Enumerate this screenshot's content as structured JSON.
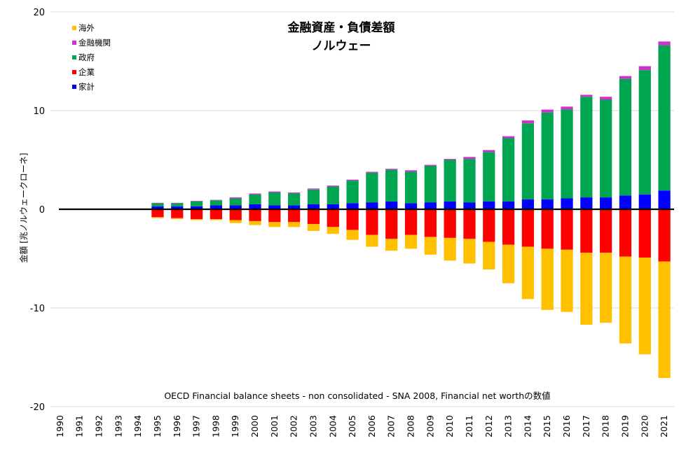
{
  "chart_data": {
    "type": "bar",
    "stacked": true,
    "title": "金融資産・負債差額",
    "subtitle": "ノルウェー",
    "ylabel": "金額 [兆ノルウェークローネ]",
    "xlabel": "",
    "note": "OECD Financial balance sheets - non consolidated - SNA 2008, Financial net worthの数値",
    "ylim": [
      -20,
      20
    ],
    "yticks": [
      "-20",
      "-10",
      "0",
      "10",
      "20"
    ],
    "ytick_values": [
      -20,
      -10,
      0,
      10,
      20
    ],
    "grid": true,
    "legend_position": "top-left",
    "categories": [
      "1990",
      "1991",
      "1992",
      "1993",
      "1994",
      "1995",
      "1996",
      "1997",
      "1998",
      "1999",
      "2000",
      "2001",
      "2002",
      "2003",
      "2004",
      "2005",
      "2006",
      "2007",
      "2008",
      "2009",
      "2010",
      "2011",
      "2012",
      "2013",
      "2014",
      "2015",
      "2016",
      "2017",
      "2018",
      "2019",
      "2020",
      "2021"
    ],
    "series": [
      {
        "name": "海外",
        "color": "#FFC000",
        "values": [
          null,
          null,
          null,
          null,
          null,
          -0.1,
          -0.1,
          -0.1,
          -0.1,
          -0.3,
          -0.4,
          -0.5,
          -0.5,
          -0.7,
          -0.7,
          -1.0,
          -1.2,
          -1.2,
          -1.4,
          -1.8,
          -2.3,
          -2.5,
          -2.8,
          -3.9,
          -5.3,
          -6.2,
          -6.3,
          -7.3,
          -7.1,
          -8.8,
          -9.8,
          -11.8
        ]
      },
      {
        "name": "金融機関",
        "color": "#CC33CC",
        "values": [
          null,
          null,
          null,
          null,
          null,
          0.05,
          0.05,
          0.05,
          0.05,
          0.1,
          0.1,
          0.1,
          0.1,
          0.1,
          0.1,
          0.1,
          0.1,
          0.1,
          0.15,
          0.1,
          0.1,
          0.2,
          0.2,
          0.2,
          0.3,
          0.3,
          0.3,
          0.2,
          0.3,
          0.3,
          0.4,
          0.4
        ]
      },
      {
        "name": "政府",
        "color": "#00A550",
        "values": [
          null,
          null,
          null,
          null,
          null,
          0.3,
          0.3,
          0.5,
          0.5,
          0.7,
          1.0,
          1.3,
          1.2,
          1.5,
          1.8,
          2.3,
          3.0,
          3.2,
          3.2,
          3.7,
          4.2,
          4.4,
          5.0,
          6.4,
          7.7,
          8.8,
          9.0,
          10.2,
          9.9,
          11.8,
          12.6,
          14.7
        ]
      },
      {
        "name": "企業",
        "color": "#FF0000",
        "values": [
          null,
          null,
          null,
          null,
          null,
          -0.8,
          -0.9,
          -1.0,
          -1.0,
          -1.1,
          -1.2,
          -1.3,
          -1.3,
          -1.5,
          -1.8,
          -2.1,
          -2.6,
          -3.0,
          -2.6,
          -2.8,
          -2.9,
          -3.0,
          -3.3,
          -3.6,
          -3.8,
          -4.0,
          -4.1,
          -4.4,
          -4.4,
          -4.8,
          -4.9,
          -5.3
        ]
      },
      {
        "name": "家計",
        "color": "#0000FF",
        "values": [
          null,
          null,
          null,
          null,
          null,
          0.3,
          0.3,
          0.3,
          0.4,
          0.4,
          0.5,
          0.4,
          0.4,
          0.5,
          0.5,
          0.6,
          0.7,
          0.8,
          0.6,
          0.7,
          0.8,
          0.7,
          0.8,
          0.8,
          1.0,
          1.0,
          1.1,
          1.2,
          1.2,
          1.4,
          1.5,
          1.9
        ]
      }
    ]
  },
  "colors": {
    "zero_line": "#000000",
    "grid": "#D9D9D9"
  }
}
